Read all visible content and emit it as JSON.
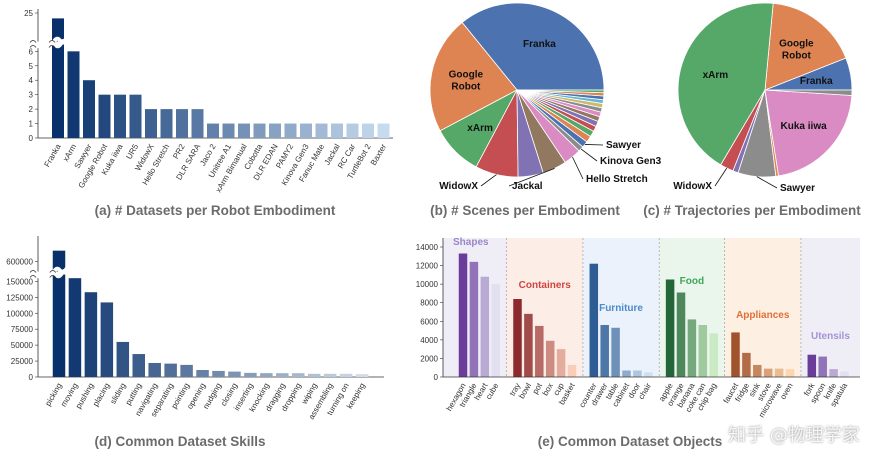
{
  "chart_data": [
    {
      "type": "bar",
      "title": "(a) # Datasets per Robot Embodiment",
      "categories": [
        "Franka",
        "xArm",
        "Sawyer",
        "Google Robot",
        "Kuka iiwa",
        "UR5",
        "WidowX",
        "Hello Stretch",
        "PR2",
        "DLR SARA",
        "Jaco 2",
        "Unitree A1",
        "xArm Bimanual",
        "Cobotta",
        "DLR EDAN",
        "PAMY2",
        "Kinova Gen3",
        "Fanuc Mate",
        "Jackal",
        "RC Car",
        "TurtleBot 2",
        "Baxter"
      ],
      "values": [
        24,
        6,
        4,
        3,
        3,
        3,
        2,
        2,
        2,
        2,
        1,
        1,
        1,
        1,
        1,
        1,
        1,
        1,
        1,
        1,
        1,
        1
      ],
      "yticks": [
        "0",
        "1",
        "2",
        "3",
        "4",
        "5",
        "6",
        "25"
      ],
      "ylim": [
        0,
        25
      ],
      "broken_axis": {
        "lower": [
          0,
          6.3
        ],
        "upper": [
          20,
          25
        ]
      },
      "colors": {
        "dark": "#08306b",
        "light": "#c6dbef"
      }
    },
    {
      "type": "pie",
      "title": "(b) # Scenes per Embodiment",
      "slices": [
        {
          "label": "Franka",
          "value": 36,
          "color": "#4c72b0",
          "label_pos": "inside"
        },
        {
          "label": "Google Robot",
          "value": 22,
          "color": "#dd8452",
          "label_pos": "inside"
        },
        {
          "label": "xArm",
          "value": 9.5,
          "color": "#55a868",
          "label_pos": "inside"
        },
        {
          "label": "WidowX",
          "value": 8,
          "color": "#c44e52",
          "label_pos": "outside"
        },
        {
          "label": "",
          "value": 4.7,
          "color": "#8172b3"
        },
        {
          "label": "Jackal",
          "value": 4.5,
          "color": "#937860",
          "label_pos": "outside"
        },
        {
          "label": "Hello Stretch",
          "value": 3.3,
          "color": "#da8bc3",
          "label_pos": "outside"
        },
        {
          "label": "Kinova Gen3",
          "value": 1,
          "color": "#8c8c8c",
          "label_pos": "outside"
        },
        {
          "label": "Sawyer",
          "value": 1.2,
          "color": "#4c72b0",
          "label_pos": "outside"
        },
        {
          "label": "",
          "value": 1.2,
          "color": "#dd8452"
        },
        {
          "label": "",
          "value": 1.1,
          "color": "#55a868"
        },
        {
          "label": "",
          "value": 1.0,
          "color": "#c44e52"
        },
        {
          "label": "",
          "value": 1.0,
          "color": "#8172b3"
        },
        {
          "label": "",
          "value": 0.9,
          "color": "#937860"
        },
        {
          "label": "",
          "value": 0.9,
          "color": "#da8bc3"
        },
        {
          "label": "",
          "value": 0.8,
          "color": "#8c8c8c"
        },
        {
          "label": "",
          "value": 0.8,
          "color": "#ccb974"
        },
        {
          "label": "",
          "value": 0.7,
          "color": "#64b5cd"
        },
        {
          "label": "",
          "value": 0.7,
          "color": "#4c72b0"
        },
        {
          "label": "",
          "value": 0.6,
          "color": "#dd8452"
        },
        {
          "label": "",
          "value": 0.5,
          "color": "#55a868"
        }
      ]
    },
    {
      "type": "pie",
      "title": "(c) # Trajectories per Embodiment",
      "slices": [
        {
          "label": "Franka",
          "value": 6,
          "color": "#4c72b0",
          "label_pos": "inside"
        },
        {
          "label": "Google Robot",
          "value": 17.5,
          "color": "#dd8452",
          "label_pos": "inside"
        },
        {
          "label": "xArm",
          "value": 43,
          "color": "#55a868",
          "label_pos": "inside"
        },
        {
          "label": "WidowX",
          "value": 2.5,
          "color": "#c44e52",
          "label_pos": "outside"
        },
        {
          "label": "",
          "value": 1,
          "color": "#8172b3"
        },
        {
          "label": "Sawyer",
          "value": 7,
          "color": "#8c8c8c",
          "label_pos": "outside"
        },
        {
          "label": "",
          "value": 0.5,
          "color": "#dd8452"
        },
        {
          "label": "Kuka iiwa",
          "value": 21.5,
          "color": "#da8bc3",
          "label_pos": "inside"
        },
        {
          "label": "",
          "value": 1,
          "color": "#8c8c8c"
        }
      ]
    },
    {
      "type": "bar",
      "title": "(d) Common Dataset Skills",
      "categories": [
        "picking",
        "moving",
        "pushing",
        "placing",
        "sliding",
        "putting",
        "navigating",
        "separating",
        "pointing",
        "opening",
        "nudging",
        "closing",
        "inserting",
        "knocking",
        "dragging",
        "dropping",
        "wiping",
        "assembling",
        "turning on",
        "keeping"
      ],
      "values": [
        620000,
        155000,
        133000,
        117000,
        55000,
        36000,
        22000,
        21000,
        19000,
        11000,
        9500,
        8500,
        6500,
        6000,
        6000,
        6000,
        5000,
        5000,
        5000,
        4500
      ],
      "yticks": [
        "0",
        "25000",
        "50000",
        "75000",
        "100000",
        "125000",
        "150000",
        "600000"
      ],
      "broken_axis": {
        "lower": [
          0,
          160000
        ],
        "upper": [
          580000,
          640000
        ]
      },
      "colors": {
        "dark": "#08306b",
        "light": "#d0dce8"
      }
    },
    {
      "type": "bar",
      "title": "(e) Common Dataset Objects",
      "ylim": [
        0,
        14000
      ],
      "yticks": [
        "0",
        "2000",
        "4000",
        "6000",
        "8000",
        "10000",
        "12000",
        "14000"
      ],
      "groups": [
        {
          "name": "Shapes",
          "color": "#9b86c9",
          "bg": "#efeef7",
          "dark": "#6a3d9a",
          "light": "#e2e0f0",
          "categories": [
            "hexagon",
            "triangle",
            "heart",
            "cube"
          ],
          "values": [
            13300,
            12400,
            10800,
            10000
          ]
        },
        {
          "name": "Containers",
          "color": "#d0453f",
          "bg": "#fcede7",
          "dark": "#8b2a2f",
          "light": "#f9cdb8",
          "categories": [
            "tray",
            "bowl",
            "pot",
            "box",
            "cup",
            "basket"
          ],
          "values": [
            8400,
            6800,
            5500,
            3900,
            3000,
            1300
          ]
        },
        {
          "name": "Furniture",
          "color": "#4a8cc8",
          "bg": "#ebf2fb",
          "dark": "#2d5d94",
          "light": "#cde0f1",
          "categories": [
            "counter",
            "drawer",
            "table",
            "cabinet",
            "door",
            "chair"
          ],
          "values": [
            12200,
            5600,
            5300,
            700,
            700,
            500
          ]
        },
        {
          "name": "Food",
          "color": "#3fa55a",
          "bg": "#eaf6eb",
          "dark": "#23663a",
          "light": "#c9eac2",
          "categories": [
            "apple",
            "orange",
            "banana",
            "coke can",
            "chip bag"
          ],
          "values": [
            10500,
            9100,
            6200,
            5600,
            4700
          ]
        },
        {
          "name": "Appliances",
          "color": "#e0703a",
          "bg": "#fdefe2",
          "dark": "#a0522d",
          "light": "#fdd6ad",
          "categories": [
            "faucet",
            "fridge",
            "sink",
            "stove",
            "microwave",
            "oven"
          ],
          "values": [
            4800,
            2600,
            1300,
            900,
            900,
            850
          ]
        },
        {
          "name": "Utensils",
          "color": "#a593d4",
          "bg": "#efeef7",
          "dark": "#6a3d9a",
          "light": "#e2e0f0",
          "categories": [
            "fork",
            "spoon",
            "knife",
            "spatula"
          ],
          "values": [
            2400,
            2200,
            850,
            600
          ]
        }
      ]
    }
  ],
  "watermark": "知乎 @物理学家"
}
